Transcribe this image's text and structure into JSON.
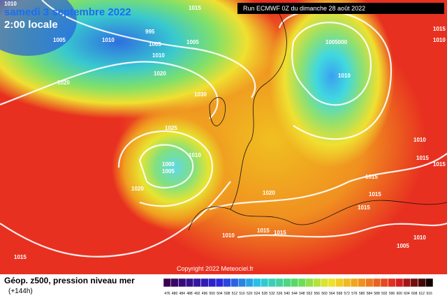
{
  "header": {
    "title": "samedi 3 septembre 2022",
    "time": "2:00 locale",
    "run": "Run ECMWF 0Z du dimanche 28 août 2022"
  },
  "isobar_labels": [
    "1015",
    "1010",
    "995",
    "1005",
    "1010",
    "1005",
    "1005",
    "1010",
    "1020",
    "1020",
    "1030",
    "1025",
    "1005000",
    "1010",
    "1000",
    "1005",
    "1010",
    "1020",
    "1020",
    "1015",
    "1015",
    "1015",
    "1015",
    "1015",
    "1010",
    "1010",
    "1015",
    "1015",
    "1005",
    "1010",
    "1015",
    "1015",
    "1010"
  ],
  "footer": {
    "title": "Géop. z500, pression niveau mer",
    "lead": "(+144h)",
    "copyright": "Copyright 2022 Meteociel.fr"
  },
  "legend": {
    "labels": [
      476,
      480,
      484,
      488,
      492,
      496,
      500,
      504,
      508,
      512,
      516,
      520,
      524,
      528,
      532,
      536,
      540,
      544,
      548,
      552,
      556,
      560,
      564,
      568,
      572,
      576,
      580,
      584,
      588,
      592,
      596,
      600,
      604,
      608,
      612,
      616
    ]
  }
}
